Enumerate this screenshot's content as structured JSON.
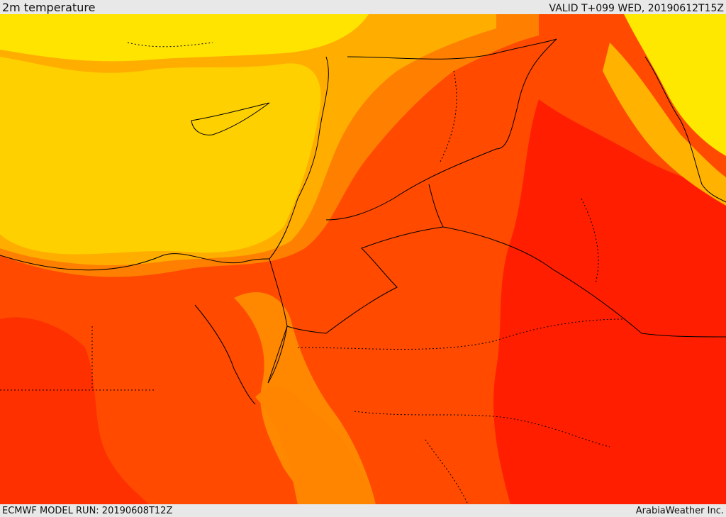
{
  "header": {
    "title": "2m temperature",
    "valid": "VALID T+099 WED, 20190612T15Z"
  },
  "footer": {
    "model_run": "ECMWF MODEL RUN: 20190608T12Z",
    "brand": "ArabiaWeather Inc."
  },
  "palette": {
    "light_yellow": "#ffff00",
    "yellow": "#ffd200",
    "gold": "#ffb000",
    "orange": "#ff8c00",
    "dark_orange": "#ff6400",
    "red_orange": "#ff4000",
    "red": "#ff1a00",
    "border_color": "#000000"
  }
}
